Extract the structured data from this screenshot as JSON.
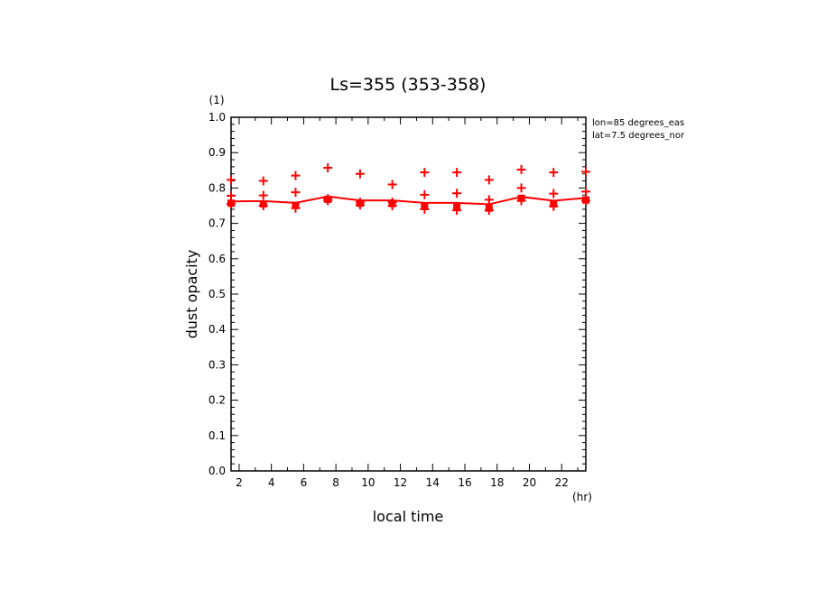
{
  "chart_data": {
    "type": "line",
    "title": "Ls=355 (353-358)",
    "xlabel": "local time",
    "x_unit": "(hr)",
    "ylabel": "dust opacity",
    "y_unit": "(1)",
    "annotations": [
      "lon=85 degrees_eas",
      "lat=7.5 degrees_nor"
    ],
    "xlim": [
      1.5,
      23.5
    ],
    "ylim": [
      0.0,
      1.0
    ],
    "x_ticks": [
      2,
      4,
      6,
      8,
      10,
      12,
      14,
      16,
      18,
      20,
      22
    ],
    "x_tick_labels": [
      "2",
      "4",
      "6",
      "8",
      "10",
      "12",
      "14",
      "16",
      "18",
      "20",
      "22"
    ],
    "y_ticks": [
      0.0,
      0.1,
      0.2,
      0.3,
      0.4,
      0.5,
      0.6,
      0.7,
      0.8,
      0.9,
      1.0
    ],
    "y_tick_labels": [
      "0.0",
      "0.1",
      "0.2",
      "0.3",
      "0.4",
      "0.5",
      "0.6",
      "0.7",
      "0.8",
      "0.9",
      "1.0"
    ],
    "grid": false,
    "color": "#ff0000",
    "series": [
      {
        "style": "line",
        "x": [
          1.5,
          3.5,
          5.5,
          7.5,
          9.5,
          11.5,
          13.5,
          15.5,
          17.5,
          19.5,
          21.5,
          23.5
        ],
        "values": [
          0.762,
          0.763,
          0.758,
          0.776,
          0.765,
          0.765,
          0.758,
          0.758,
          0.754,
          0.775,
          0.764,
          0.772
        ]
      },
      {
        "style": "filled-markers",
        "x": [
          1.5,
          3.5,
          5.5,
          7.5,
          9.5,
          11.5,
          13.5,
          15.5,
          17.5,
          19.5,
          21.5,
          23.5
        ],
        "values": [
          0.757,
          0.755,
          0.751,
          0.768,
          0.757,
          0.756,
          0.748,
          0.745,
          0.743,
          0.771,
          0.755,
          0.766
        ]
      },
      {
        "style": "plus-markers",
        "x": [
          1.5,
          3.5,
          5.5,
          7.5,
          9.5,
          11.5,
          13.5,
          15.5,
          17.5,
          19.5,
          21.5,
          23.5
        ],
        "values": [
          0.823,
          0.82,
          0.835,
          0.857,
          0.84,
          0.81,
          0.844,
          0.844,
          0.823,
          0.852,
          0.844,
          0.846
        ]
      },
      {
        "style": "plus-markers",
        "x": [
          1.5,
          3.5,
          5.5,
          7.5,
          9.5,
          11.5,
          13.5,
          15.5,
          17.5,
          19.5,
          21.5,
          23.5
        ],
        "values": [
          0.778,
          0.779,
          0.788,
          0.77,
          0.76,
          0.76,
          0.781,
          0.785,
          0.767,
          0.8,
          0.784,
          0.79
        ]
      },
      {
        "style": "plus-markers",
        "x": [
          1.5,
          3.5,
          5.5,
          7.5,
          9.5,
          11.5,
          13.5,
          15.5,
          17.5,
          19.5,
          21.5,
          23.5
        ],
        "values": [
          0.755,
          0.75,
          0.743,
          0.764,
          0.752,
          0.75,
          0.74,
          0.737,
          0.737,
          0.764,
          0.748,
          0.764
        ]
      }
    ]
  }
}
